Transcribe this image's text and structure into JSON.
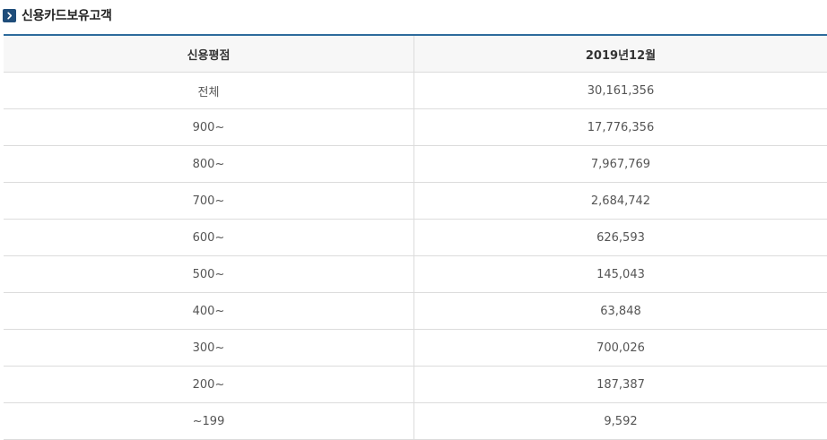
{
  "section": {
    "title": "신용카드보유고객",
    "icon": "chevron-right-icon"
  },
  "table": {
    "headers": [
      "신용평점",
      "2019년12월"
    ],
    "rows": [
      [
        "전체",
        "30,161,356"
      ],
      [
        "900~",
        "17,776,356"
      ],
      [
        "800~",
        "7,967,769"
      ],
      [
        "700~",
        "2,684,742"
      ],
      [
        "600~",
        "626,593"
      ],
      [
        "500~",
        "145,043"
      ],
      [
        "400~",
        "63,848"
      ],
      [
        "300~",
        "700,026"
      ],
      [
        "200~",
        "187,387"
      ],
      [
        "~199",
        "9,592"
      ]
    ]
  },
  "colors": {
    "accent": "#2e6b9c",
    "icon_bg": "#1f4d7a",
    "header_bg": "#f7f7f7"
  }
}
